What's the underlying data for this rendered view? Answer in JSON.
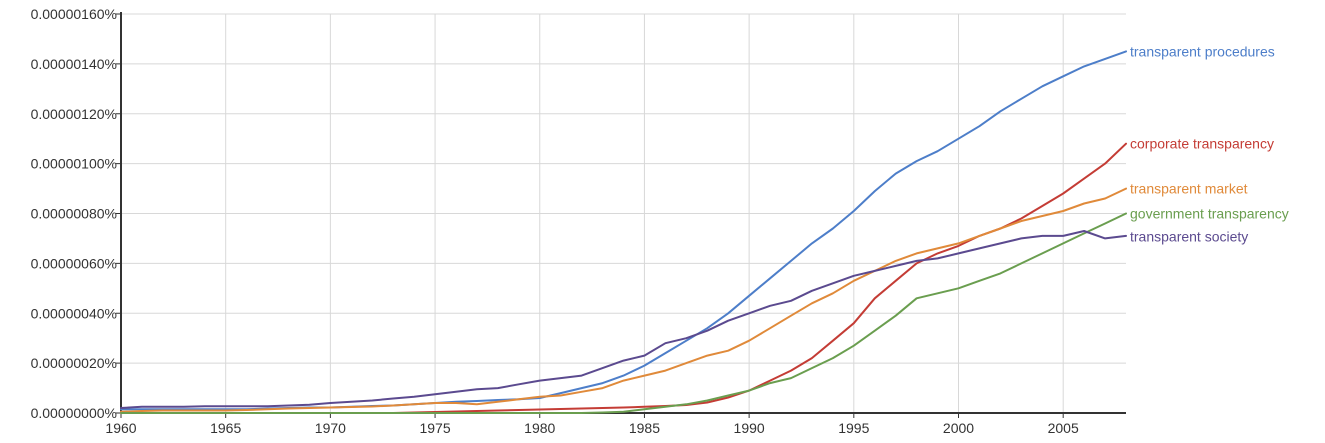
{
  "chart_data": {
    "type": "line",
    "title": "",
    "xlabel": "",
    "ylabel": "",
    "xlim": [
      1960,
      2008
    ],
    "ylim": [
      0,
      1.6e-06
    ],
    "grid": true,
    "legend": "inline-right",
    "x_ticks": [
      1960,
      1965,
      1970,
      1975,
      1980,
      1985,
      1990,
      1995,
      2000,
      2005
    ],
    "x_tick_labels": [
      "1960",
      "1965",
      "1970",
      "1975",
      "1980",
      "1985",
      "1990",
      "1995",
      "2000",
      "2005"
    ],
    "y_ticks": [
      0,
      2e-07,
      4e-07,
      6e-07,
      8e-07,
      1e-06,
      1.2e-06,
      1.4e-06,
      1.6e-06
    ],
    "y_tick_labels": [
      "0.00000000%",
      "0.00000020%",
      "0.00000040%",
      "0.00000060%",
      "0.00000080%",
      "0.00000100%",
      "0.00000120%",
      "0.00000140%",
      "0.00000160%"
    ],
    "x": [
      1960,
      1961,
      1962,
      1963,
      1964,
      1965,
      1966,
      1967,
      1968,
      1969,
      1970,
      1971,
      1972,
      1973,
      1974,
      1975,
      1976,
      1977,
      1978,
      1979,
      1980,
      1981,
      1982,
      1983,
      1984,
      1985,
      1986,
      1987,
      1988,
      1989,
      1990,
      1991,
      1992,
      1993,
      1994,
      1995,
      1996,
      1997,
      1998,
      1999,
      2000,
      2001,
      2002,
      2003,
      2004,
      2005,
      2006,
      2007,
      2008
    ],
    "series": [
      {
        "name": "transparent procedures",
        "color": "#4d7ec9",
        "values": [
          1.5e-08,
          1.5e-08,
          1.5e-08,
          1.5e-08,
          1.5e-08,
          1.5e-08,
          1.5e-08,
          1.8e-08,
          2e-08,
          2.2e-08,
          2.2e-08,
          2.5e-08,
          2.8e-08,
          3e-08,
          3.5e-08,
          4e-08,
          4.5e-08,
          4.8e-08,
          5.2e-08,
          5.5e-08,
          6e-08,
          8e-08,
          1e-07,
          1.2e-07,
          1.5e-07,
          1.9e-07,
          2.4e-07,
          2.9e-07,
          3.4e-07,
          4e-07,
          4.7e-07,
          5.4e-07,
          6.1e-07,
          6.8e-07,
          7.4e-07,
          8.1e-07,
          8.9e-07,
          9.6e-07,
          1.01e-06,
          1.05e-06,
          1.1e-06,
          1.15e-06,
          1.21e-06,
          1.26e-06,
          1.31e-06,
          1.35e-06,
          1.39e-06,
          1.42e-06,
          1.45e-06
        ]
      },
      {
        "name": "corporate transparency",
        "color": "#c43c35",
        "values": [
          0,
          0,
          0,
          0,
          0,
          0,
          0,
          0,
          0,
          0,
          0,
          0,
          0,
          0,
          2e-09,
          4e-09,
          6e-09,
          8e-09,
          1e-08,
          1.2e-08,
          1.4e-08,
          1.6e-08,
          1.8e-08,
          2e-08,
          2.2e-08,
          2.5e-08,
          2.8e-08,
          3.2e-08,
          4.2e-08,
          6.2e-08,
          9e-08,
          1.3e-07,
          1.7e-07,
          2.2e-07,
          2.9e-07,
          3.6e-07,
          4.6e-07,
          5.3e-07,
          6e-07,
          6.4e-07,
          6.7e-07,
          7.1e-07,
          7.4e-07,
          7.8e-07,
          8.3e-07,
          8.8e-07,
          9.4e-07,
          1e-06,
          1.08e-06
        ]
      },
      {
        "name": "transparent market",
        "color": "#e08a3a",
        "values": [
          5e-09,
          8e-09,
          1e-08,
          1e-08,
          1e-08,
          1e-08,
          1.2e-08,
          1.5e-08,
          1.8e-08,
          2e-08,
          2.2e-08,
          2.4e-08,
          2.6e-08,
          3e-08,
          3.5e-08,
          4e-08,
          4e-08,
          3.5e-08,
          4.5e-08,
          5.5e-08,
          6.5e-08,
          7e-08,
          8.5e-08,
          1e-07,
          1.3e-07,
          1.5e-07,
          1.7e-07,
          2e-07,
          2.3e-07,
          2.5e-07,
          2.9e-07,
          3.4e-07,
          3.9e-07,
          4.4e-07,
          4.8e-07,
          5.3e-07,
          5.7e-07,
          6.1e-07,
          6.4e-07,
          6.6e-07,
          6.8e-07,
          7.1e-07,
          7.4e-07,
          7.7e-07,
          7.9e-07,
          8.1e-07,
          8.4e-07,
          8.6e-07,
          9e-07
        ]
      },
      {
        "name": "government transparency",
        "color": "#6a9e4f",
        "values": [
          0,
          0,
          0,
          0,
          0,
          0,
          0,
          0,
          0,
          0,
          0,
          0,
          0,
          0,
          0,
          0,
          0,
          0,
          0,
          0,
          0,
          0,
          0,
          2e-09,
          5e-09,
          1.5e-08,
          2.5e-08,
          3.5e-08,
          5e-08,
          7e-08,
          9e-08,
          1.2e-07,
          1.4e-07,
          1.8e-07,
          2.2e-07,
          2.7e-07,
          3.3e-07,
          3.9e-07,
          4.6e-07,
          4.8e-07,
          5e-07,
          5.3e-07,
          5.6e-07,
          6e-07,
          6.4e-07,
          6.8e-07,
          7.2e-07,
          7.6e-07,
          8e-07
        ]
      },
      {
        "name": "transparent society",
        "color": "#5b4a8f",
        "values": [
          2e-08,
          2.5e-08,
          2.5e-08,
          2.5e-08,
          2.7e-08,
          2.7e-08,
          2.7e-08,
          2.7e-08,
          3e-08,
          3.3e-08,
          4e-08,
          4.5e-08,
          5e-08,
          5.8e-08,
          6.5e-08,
          7.5e-08,
          8.5e-08,
          9.5e-08,
          1e-07,
          1.15e-07,
          1.3e-07,
          1.4e-07,
          1.5e-07,
          1.8e-07,
          2.1e-07,
          2.3e-07,
          2.8e-07,
          3e-07,
          3.3e-07,
          3.7e-07,
          4e-07,
          4.3e-07,
          4.5e-07,
          4.9e-07,
          5.2e-07,
          5.5e-07,
          5.7e-07,
          5.9e-07,
          6.1e-07,
          6.2e-07,
          6.4e-07,
          6.6e-07,
          6.8e-07,
          7e-07,
          7.1e-07,
          7.1e-07,
          7.3e-07,
          7e-07,
          7.1e-07
        ]
      }
    ]
  }
}
